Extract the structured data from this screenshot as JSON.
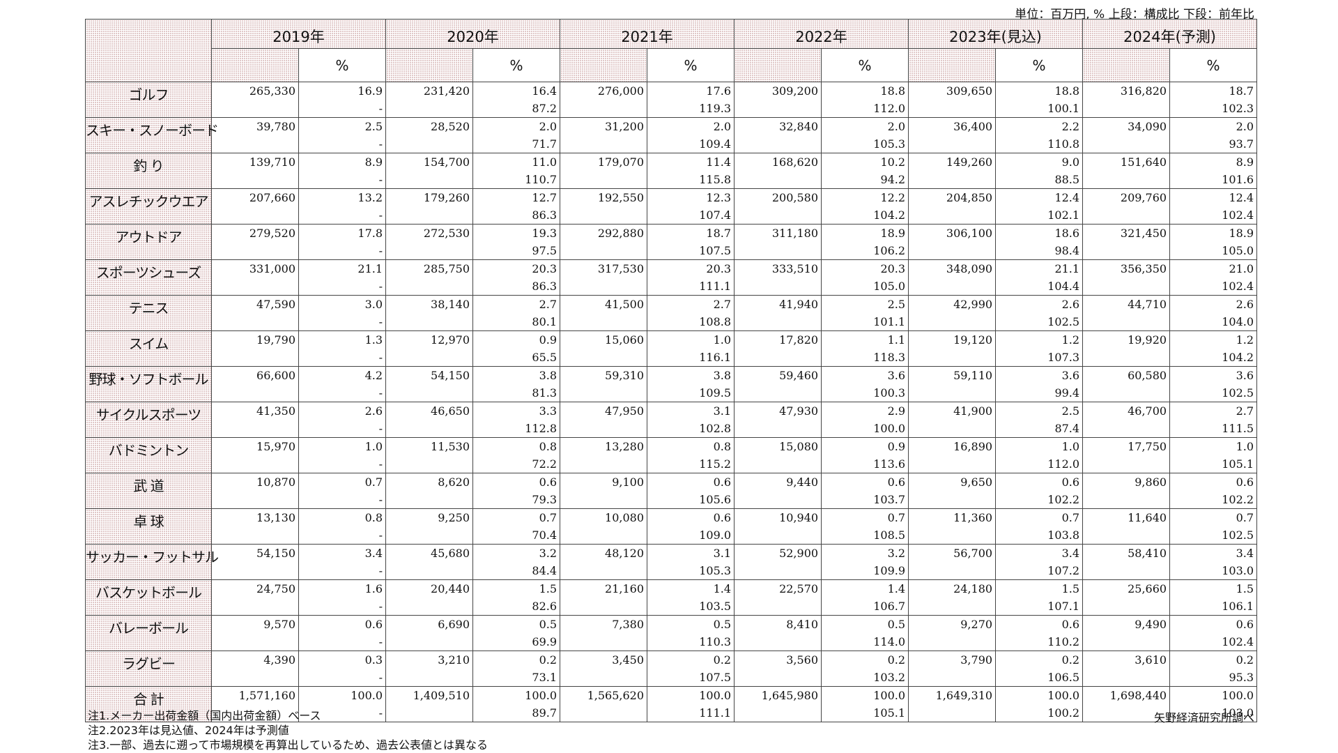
{
  "unit_note": "単位：百万円, % 上段：構成比 下段：前年比",
  "columns": {
    "years": [
      "2019年",
      "2020年",
      "2021年",
      "2022年",
      "2023年(見込)",
      "2024年(予測)"
    ],
    "pct_label": "%"
  },
  "rows": [
    {
      "name": "ゴルフ",
      "cells": [
        [
          "265,330",
          "16.9",
          "-"
        ],
        [
          "231,420",
          "16.4",
          "87.2"
        ],
        [
          "276,000",
          "17.6",
          "119.3"
        ],
        [
          "309,200",
          "18.8",
          "112.0"
        ],
        [
          "309,650",
          "18.8",
          "100.1"
        ],
        [
          "316,820",
          "18.7",
          "102.3"
        ]
      ]
    },
    {
      "name": "スキー・スノーボード",
      "cells": [
        [
          "39,780",
          "2.5",
          "-"
        ],
        [
          "28,520",
          "2.0",
          "71.7"
        ],
        [
          "31,200",
          "2.0",
          "109.4"
        ],
        [
          "32,840",
          "2.0",
          "105.3"
        ],
        [
          "36,400",
          "2.2",
          "110.8"
        ],
        [
          "34,090",
          "2.0",
          "93.7"
        ]
      ]
    },
    {
      "name": "釣 り",
      "cells": [
        [
          "139,710",
          "8.9",
          "-"
        ],
        [
          "154,700",
          "11.0",
          "110.7"
        ],
        [
          "179,070",
          "11.4",
          "115.8"
        ],
        [
          "168,620",
          "10.2",
          "94.2"
        ],
        [
          "149,260",
          "9.0",
          "88.5"
        ],
        [
          "151,640",
          "8.9",
          "101.6"
        ]
      ]
    },
    {
      "name": "アスレチックウエア",
      "cells": [
        [
          "207,660",
          "13.2",
          "-"
        ],
        [
          "179,260",
          "12.7",
          "86.3"
        ],
        [
          "192,550",
          "12.3",
          "107.4"
        ],
        [
          "200,580",
          "12.2",
          "104.2"
        ],
        [
          "204,850",
          "12.4",
          "102.1"
        ],
        [
          "209,760",
          "12.4",
          "102.4"
        ]
      ]
    },
    {
      "name": "アウトドア",
      "cells": [
        [
          "279,520",
          "17.8",
          "-"
        ],
        [
          "272,530",
          "19.3",
          "97.5"
        ],
        [
          "292,880",
          "18.7",
          "107.5"
        ],
        [
          "311,180",
          "18.9",
          "106.2"
        ],
        [
          "306,100",
          "18.6",
          "98.4"
        ],
        [
          "321,450",
          "18.9",
          "105.0"
        ]
      ]
    },
    {
      "name": "スポーツシューズ",
      "cells": [
        [
          "331,000",
          "21.1",
          "-"
        ],
        [
          "285,750",
          "20.3",
          "86.3"
        ],
        [
          "317,530",
          "20.3",
          "111.1"
        ],
        [
          "333,510",
          "20.3",
          "105.0"
        ],
        [
          "348,090",
          "21.1",
          "104.4"
        ],
        [
          "356,350",
          "21.0",
          "102.4"
        ]
      ]
    },
    {
      "name": "テニス",
      "cells": [
        [
          "47,590",
          "3.0",
          "-"
        ],
        [
          "38,140",
          "2.7",
          "80.1"
        ],
        [
          "41,500",
          "2.7",
          "108.8"
        ],
        [
          "41,940",
          "2.5",
          "101.1"
        ],
        [
          "42,990",
          "2.6",
          "102.5"
        ],
        [
          "44,710",
          "2.6",
          "104.0"
        ]
      ]
    },
    {
      "name": "スイム",
      "cells": [
        [
          "19,790",
          "1.3",
          "-"
        ],
        [
          "12,970",
          "0.9",
          "65.5"
        ],
        [
          "15,060",
          "1.0",
          "116.1"
        ],
        [
          "17,820",
          "1.1",
          "118.3"
        ],
        [
          "19,120",
          "1.2",
          "107.3"
        ],
        [
          "19,920",
          "1.2",
          "104.2"
        ]
      ]
    },
    {
      "name": "野球・ソフトボール",
      "cells": [
        [
          "66,600",
          "4.2",
          "-"
        ],
        [
          "54,150",
          "3.8",
          "81.3"
        ],
        [
          "59,310",
          "3.8",
          "109.5"
        ],
        [
          "59,460",
          "3.6",
          "100.3"
        ],
        [
          "59,110",
          "3.6",
          "99.4"
        ],
        [
          "60,580",
          "3.6",
          "102.5"
        ]
      ]
    },
    {
      "name": "サイクルスポーツ",
      "cells": [
        [
          "41,350",
          "2.6",
          "-"
        ],
        [
          "46,650",
          "3.3",
          "112.8"
        ],
        [
          "47,950",
          "3.1",
          "102.8"
        ],
        [
          "47,930",
          "2.9",
          "100.0"
        ],
        [
          "41,900",
          "2.5",
          "87.4"
        ],
        [
          "46,700",
          "2.7",
          "111.5"
        ]
      ]
    },
    {
      "name": "バドミントン",
      "cells": [
        [
          "15,970",
          "1.0",
          "-"
        ],
        [
          "11,530",
          "0.8",
          "72.2"
        ],
        [
          "13,280",
          "0.8",
          "115.2"
        ],
        [
          "15,080",
          "0.9",
          "113.6"
        ],
        [
          "16,890",
          "1.0",
          "112.0"
        ],
        [
          "17,750",
          "1.0",
          "105.1"
        ]
      ]
    },
    {
      "name": "武 道",
      "cells": [
        [
          "10,870",
          "0.7",
          "-"
        ],
        [
          "8,620",
          "0.6",
          "79.3"
        ],
        [
          "9,100",
          "0.6",
          "105.6"
        ],
        [
          "9,440",
          "0.6",
          "103.7"
        ],
        [
          "9,650",
          "0.6",
          "102.2"
        ],
        [
          "9,860",
          "0.6",
          "102.2"
        ]
      ]
    },
    {
      "name": "卓 球",
      "cells": [
        [
          "13,130",
          "0.8",
          "-"
        ],
        [
          "9,250",
          "0.7",
          "70.4"
        ],
        [
          "10,080",
          "0.6",
          "109.0"
        ],
        [
          "10,940",
          "0.7",
          "108.5"
        ],
        [
          "11,360",
          "0.7",
          "103.8"
        ],
        [
          "11,640",
          "0.7",
          "102.5"
        ]
      ]
    },
    {
      "name": "サッカー・フットサル",
      "cells": [
        [
          "54,150",
          "3.4",
          "-"
        ],
        [
          "45,680",
          "3.2",
          "84.4"
        ],
        [
          "48,120",
          "3.1",
          "105.3"
        ],
        [
          "52,900",
          "3.2",
          "109.9"
        ],
        [
          "56,700",
          "3.4",
          "107.2"
        ],
        [
          "58,410",
          "3.4",
          "103.0"
        ]
      ]
    },
    {
      "name": "バスケットボール",
      "cells": [
        [
          "24,750",
          "1.6",
          "-"
        ],
        [
          "20,440",
          "1.5",
          "82.6"
        ],
        [
          "21,160",
          "1.4",
          "103.5"
        ],
        [
          "22,570",
          "1.4",
          "106.7"
        ],
        [
          "24,180",
          "1.5",
          "107.1"
        ],
        [
          "25,660",
          "1.5",
          "106.1"
        ]
      ]
    },
    {
      "name": "バレーボール",
      "cells": [
        [
          "9,570",
          "0.6",
          "-"
        ],
        [
          "6,690",
          "0.5",
          "69.9"
        ],
        [
          "7,380",
          "0.5",
          "110.3"
        ],
        [
          "8,410",
          "0.5",
          "114.0"
        ],
        [
          "9,270",
          "0.6",
          "110.2"
        ],
        [
          "9,490",
          "0.6",
          "102.4"
        ]
      ]
    },
    {
      "name": "ラグビー",
      "cells": [
        [
          "4,390",
          "0.3",
          "-"
        ],
        [
          "3,210",
          "0.2",
          "73.1"
        ],
        [
          "3,450",
          "0.2",
          "107.5"
        ],
        [
          "3,560",
          "0.2",
          "103.2"
        ],
        [
          "3,790",
          "0.2",
          "106.5"
        ],
        [
          "3,610",
          "0.2",
          "95.3"
        ]
      ]
    },
    {
      "name": "合 計",
      "cells": [
        [
          "1,571,160",
          "100.0",
          "-"
        ],
        [
          "1,409,510",
          "100.0",
          "89.7"
        ],
        [
          "1,565,620",
          "100.0",
          "111.1"
        ],
        [
          "1,645,980",
          "100.0",
          "105.1"
        ],
        [
          "1,649,310",
          "100.0",
          "100.2"
        ],
        [
          "1,698,440",
          "100.0",
          "103.0"
        ]
      ]
    }
  ],
  "footnotes": [
    "注1.メーカー出荷金額（国内出荷金額）ベース",
    "注2.2023年は見込値、2024年は予測値",
    "注3.一部、過去に遡って市場規模を再算出しているため、過去公表値とは異なる"
  ],
  "source": "矢野経済研究所調べ"
}
